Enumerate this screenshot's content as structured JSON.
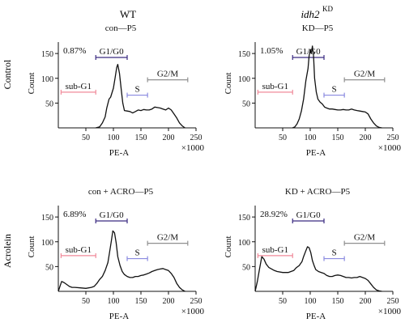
{
  "figure": {
    "column_headers": [
      "WT",
      "idh2",
      "KD"
    ],
    "row_labels": [
      "Control",
      "Acrolein"
    ]
  },
  "chart_data": [
    {
      "type": "line",
      "title": "con—P5",
      "subG1_percent": "0.87%",
      "xlabel": "PE-A",
      "ylabel": "Count",
      "x_multiplier": "×1000",
      "xlim": [
        0,
        250
      ],
      "ylim": [
        0,
        160
      ],
      "xticks": [
        50,
        100,
        150,
        200,
        250
      ],
      "yticks": [
        50,
        100,
        150
      ],
      "gates": [
        {
          "label": "sub-G1",
          "range": [
            5,
            68
          ],
          "color": "#f08a9a"
        },
        {
          "label": "G1/G0",
          "range": [
            68,
            125
          ],
          "color": "#3a2a80"
        },
        {
          "label": "S",
          "range": [
            125,
            162
          ],
          "color": "#8a8ae0"
        },
        {
          "label": "G2/M",
          "range": [
            162,
            235
          ],
          "color": "#909090"
        }
      ],
      "series": [
        {
          "x": [
            68,
            75,
            80,
            85,
            88,
            92,
            95,
            100,
            103,
            106,
            108,
            111,
            114,
            117,
            120,
            125,
            130,
            135,
            140,
            145,
            150,
            155,
            160,
            165,
            170,
            175,
            180,
            185,
            190,
            195,
            200,
            205,
            210,
            215,
            220,
            225,
            230
          ],
          "y": [
            0,
            2,
            10,
            22,
            40,
            58,
            62,
            80,
            100,
            122,
            128,
            110,
            80,
            50,
            35,
            34,
            33,
            30,
            33,
            36,
            35,
            37,
            36,
            36,
            38,
            42,
            41,
            40,
            38,
            36,
            40,
            36,
            28,
            20,
            10,
            4,
            0
          ]
        }
      ]
    },
    {
      "type": "line",
      "title": "KD—P5",
      "subG1_percent": "1.05%",
      "xlabel": "PE-A",
      "ylabel": "Count",
      "x_multiplier": "×1000",
      "xlim": [
        0,
        250
      ],
      "ylim": [
        0,
        160
      ],
      "xticks": [
        50,
        100,
        150,
        200,
        250
      ],
      "yticks": [
        50,
        100,
        150
      ],
      "gates": [
        {
          "label": "sub-G1",
          "range": [
            5,
            68
          ],
          "color": "#f08a9a"
        },
        {
          "label": "G1/G0",
          "range": [
            68,
            125
          ],
          "color": "#3a2a80"
        },
        {
          "label": "S",
          "range": [
            125,
            162
          ],
          "color": "#8a8ae0"
        },
        {
          "label": "G2/M",
          "range": [
            162,
            235
          ],
          "color": "#909090"
        }
      ],
      "series": [
        {
          "x": [
            68,
            72,
            76,
            80,
            84,
            88,
            92,
            96,
            98,
            100,
            102,
            104,
            106,
            108,
            111,
            114,
            118,
            122,
            126,
            130,
            135,
            140,
            145,
            150,
            155,
            160,
            165,
            170,
            175,
            180,
            185,
            190,
            195,
            200,
            205,
            210,
            215,
            220,
            225,
            230
          ],
          "y": [
            0,
            2,
            8,
            18,
            34,
            58,
            95,
            120,
            145,
            158,
            150,
            165,
            145,
            100,
            72,
            58,
            52,
            48,
            42,
            40,
            38,
            38,
            37,
            36,
            36,
            37,
            36,
            36,
            38,
            36,
            35,
            34,
            33,
            32,
            28,
            18,
            10,
            4,
            1,
            0
          ]
        }
      ]
    },
    {
      "type": "line",
      "title": "con + ACRO—P5",
      "subG1_percent": "6.89%",
      "xlabel": "PE-A",
      "ylabel": "Count",
      "x_multiplier": "×1000",
      "xlim": [
        0,
        250
      ],
      "ylim": [
        0,
        160
      ],
      "xticks": [
        50,
        100,
        150,
        200,
        250
      ],
      "yticks": [
        50,
        100,
        150
      ],
      "gates": [
        {
          "label": "sub-G1",
          "range": [
            5,
            68
          ],
          "color": "#f08a9a"
        },
        {
          "label": "G1/G0",
          "range": [
            68,
            125
          ],
          "color": "#3a2a80"
        },
        {
          "label": "S",
          "range": [
            125,
            162
          ],
          "color": "#8a8ae0"
        },
        {
          "label": "G2/M",
          "range": [
            162,
            235
          ],
          "color": "#909090"
        }
      ],
      "series": [
        {
          "x": [
            0,
            3,
            6,
            10,
            15,
            20,
            25,
            30,
            40,
            50,
            60,
            65,
            70,
            75,
            80,
            85,
            90,
            93,
            96,
            99,
            102,
            105,
            108,
            112,
            116,
            120,
            125,
            130,
            135,
            140,
            145,
            150,
            155,
            160,
            165,
            170,
            175,
            180,
            185,
            190,
            195,
            200,
            205,
            210,
            215,
            220,
            225,
            230
          ],
          "y": [
            0,
            10,
            20,
            18,
            14,
            10,
            8,
            8,
            7,
            6,
            8,
            10,
            16,
            24,
            30,
            42,
            58,
            78,
            100,
            122,
            118,
            98,
            70,
            52,
            40,
            34,
            30,
            28,
            28,
            30,
            30,
            32,
            33,
            35,
            37,
            40,
            42,
            44,
            45,
            46,
            44,
            42,
            36,
            28,
            16,
            8,
            3,
            0
          ]
        }
      ]
    },
    {
      "type": "line",
      "title": "KD + ACRO—P5",
      "subG1_percent": "28.92%",
      "xlabel": "PE-A",
      "ylabel": "Count",
      "x_multiplier": "×1000",
      "xlim": [
        0,
        250
      ],
      "ylim": [
        0,
        160
      ],
      "xticks": [
        50,
        100,
        150,
        200,
        250
      ],
      "yticks": [
        50,
        100,
        150
      ],
      "gates": [
        {
          "label": "sub-G1",
          "range": [
            5,
            68
          ],
          "color": "#f08a9a"
        },
        {
          "label": "G1/G0",
          "range": [
            68,
            125
          ],
          "color": "#3a2a80"
        },
        {
          "label": "S",
          "range": [
            125,
            162
          ],
          "color": "#8a8ae0"
        },
        {
          "label": "G2/M",
          "range": [
            162,
            235
          ],
          "color": "#909090"
        }
      ],
      "series": [
        {
          "x": [
            0,
            4,
            8,
            12,
            16,
            20,
            25,
            30,
            35,
            40,
            50,
            60,
            70,
            75,
            80,
            85,
            88,
            92,
            95,
            98,
            101,
            104,
            107,
            110,
            115,
            120,
            125,
            130,
            135,
            140,
            145,
            150,
            155,
            160,
            165,
            170,
            175,
            180,
            185,
            190,
            195,
            200,
            205,
            210,
            215,
            220,
            225,
            230
          ],
          "y": [
            0,
            20,
            45,
            70,
            65,
            55,
            48,
            45,
            42,
            40,
            38,
            38,
            42,
            48,
            52,
            60,
            70,
            82,
            90,
            88,
            78,
            62,
            52,
            44,
            40,
            38,
            36,
            32,
            30,
            30,
            32,
            33,
            32,
            30,
            28,
            28,
            27,
            28,
            28,
            30,
            28,
            26,
            22,
            15,
            8,
            3,
            1,
            0
          ]
        }
      ]
    }
  ]
}
